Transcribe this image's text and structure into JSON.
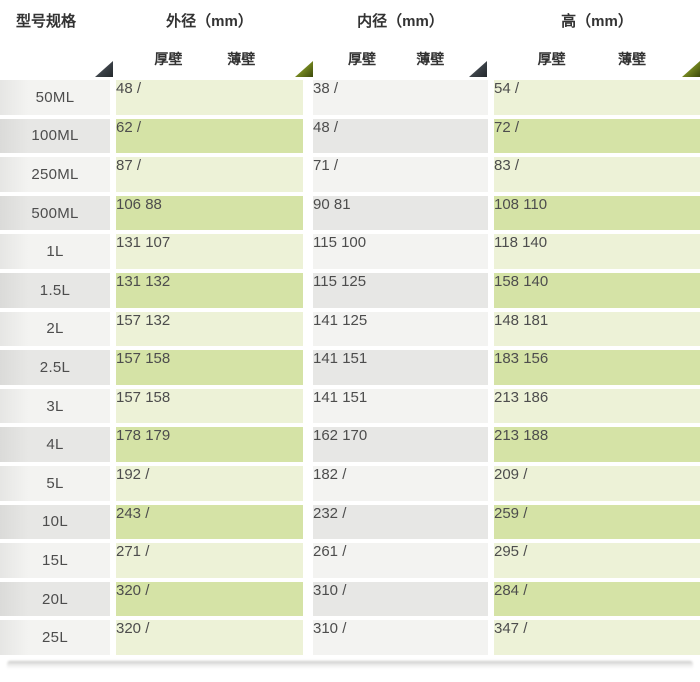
{
  "table": {
    "spec_header": "型号规格",
    "groups": [
      {
        "label": "外径（mm）",
        "sub_columns": [
          "厚壁",
          "薄壁"
        ]
      },
      {
        "label": "内径（mm）",
        "sub_columns": [
          "厚壁",
          "薄壁"
        ]
      },
      {
        "label": "高（mm）",
        "sub_columns": [
          "厚壁",
          "薄壁"
        ]
      }
    ],
    "rows": [
      {
        "model": "50ML",
        "od_thick": "48",
        "od_thin": "/",
        "id_thick": "38",
        "id_thin": "/",
        "h_thick": "54",
        "h_thin": "/"
      },
      {
        "model": "100ML",
        "od_thick": "62",
        "od_thin": "/",
        "id_thick": "48",
        "id_thin": "/",
        "h_thick": "72",
        "h_thin": "/"
      },
      {
        "model": "250ML",
        "od_thick": "87",
        "od_thin": "/",
        "id_thick": "71",
        "id_thin": "/",
        "h_thick": "83",
        "h_thin": "/"
      },
      {
        "model": "500ML",
        "od_thick": "106",
        "od_thin": "88",
        "id_thick": "90",
        "id_thin": "81",
        "h_thick": "108",
        "h_thin": "110"
      },
      {
        "model": "1L",
        "od_thick": "131",
        "od_thin": "107",
        "id_thick": "115",
        "id_thin": "100",
        "h_thick": "118",
        "h_thin": "140"
      },
      {
        "model": "1.5L",
        "od_thick": "131",
        "od_thin": "132",
        "id_thick": "115",
        "id_thin": "125",
        "h_thick": "158",
        "h_thin": "140"
      },
      {
        "model": "2L",
        "od_thick": "157",
        "od_thin": "132",
        "id_thick": "141",
        "id_thin": "125",
        "h_thick": "148",
        "h_thin": "181"
      },
      {
        "model": "2.5L",
        "od_thick": "157",
        "od_thin": "158",
        "id_thick": "141",
        "id_thin": "151",
        "h_thick": "183",
        "h_thin": "156"
      },
      {
        "model": "3L",
        "od_thick": "157",
        "od_thin": "158",
        "id_thick": "141",
        "id_thin": "151",
        "h_thick": "213",
        "h_thin": "186"
      },
      {
        "model": "4L",
        "od_thick": "178",
        "od_thin": "179",
        "id_thick": "162",
        "id_thin": "170",
        "h_thick": "213",
        "h_thin": "188"
      },
      {
        "model": "5L",
        "od_thick": "192",
        "od_thin": "/",
        "id_thick": "182",
        "id_thin": "/",
        "h_thick": "209",
        "h_thin": "/"
      },
      {
        "model": "10L",
        "od_thick": "243",
        "od_thin": "/",
        "id_thick": "232",
        "id_thin": "/",
        "h_thick": "259",
        "h_thin": "/"
      },
      {
        "model": "15L",
        "od_thick": "271",
        "od_thin": "/",
        "id_thick": "261",
        "id_thin": "/",
        "h_thick": "295",
        "h_thin": "/"
      },
      {
        "model": "20L",
        "od_thick": "320",
        "od_thin": "/",
        "id_thick": "310",
        "id_thin": "/",
        "h_thick": "284",
        "h_thin": "/"
      },
      {
        "model": "25L",
        "od_thick": "320",
        "od_thin": "/",
        "id_thick": "310",
        "id_thin": "/",
        "h_thick": "347",
        "h_thin": "/"
      }
    ]
  },
  "colors": {
    "green_light": "#edf2d7",
    "green_dark": "#d5e3a6",
    "gray_light": "#f3f3f1",
    "gray_dark": "#e7e7e5",
    "text": "#4d4d4d",
    "header_text": "#333333",
    "triangle_dark": "#3a4046",
    "triangle_green": "#6d7f1d"
  },
  "chart_data": {
    "type": "table",
    "columns": [
      "型号规格",
      "外径（mm）厚壁",
      "外径（mm）薄壁",
      "内径（mm）厚壁",
      "内径（mm）薄壁",
      "高（mm）厚壁",
      "高（mm）薄壁"
    ],
    "rows": [
      [
        "50ML",
        "48",
        "/",
        "38",
        "/",
        "54",
        "/"
      ],
      [
        "100ML",
        "62",
        "/",
        "48",
        "/",
        "72",
        "/"
      ],
      [
        "250ML",
        "87",
        "/",
        "71",
        "/",
        "83",
        "/"
      ],
      [
        "500ML",
        "106",
        "88",
        "90",
        "81",
        "108",
        "110"
      ],
      [
        "1L",
        "131",
        "107",
        "115",
        "100",
        "118",
        "140"
      ],
      [
        "1.5L",
        "131",
        "132",
        "115",
        "125",
        "158",
        "140"
      ],
      [
        "2L",
        "157",
        "132",
        "141",
        "125",
        "148",
        "181"
      ],
      [
        "2.5L",
        "157",
        "158",
        "141",
        "151",
        "183",
        "156"
      ],
      [
        "3L",
        "157",
        "158",
        "141",
        "151",
        "213",
        "186"
      ],
      [
        "4L",
        "178",
        "179",
        "162",
        "170",
        "213",
        "188"
      ],
      [
        "5L",
        "192",
        "/",
        "182",
        "/",
        "209",
        "/"
      ],
      [
        "10L",
        "243",
        "/",
        "232",
        "/",
        "259",
        "/"
      ],
      [
        "15L",
        "271",
        "/",
        "261",
        "/",
        "295",
        "/"
      ],
      [
        "20L",
        "320",
        "/",
        "310",
        "/",
        "284",
        "/"
      ],
      [
        "25L",
        "320",
        "/",
        "310",
        "/",
        "347",
        "/"
      ]
    ],
    "layout": {
      "row_striping": true,
      "group_header_rows": 2
    }
  }
}
